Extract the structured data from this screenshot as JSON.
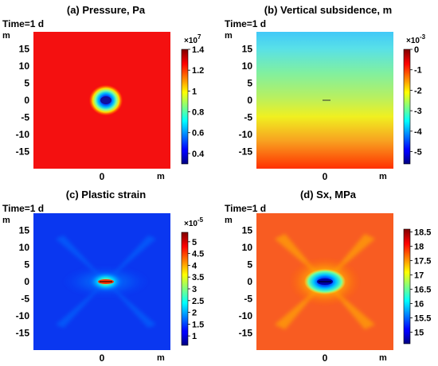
{
  "chart_data": [
    {
      "type": "heatmap",
      "title": "(a) Pressure, Pa",
      "time_label": "Time=1 d",
      "xlabel": "m",
      "ylabel": "m",
      "xlim": [
        -20,
        20
      ],
      "ylim": [
        -20,
        20
      ],
      "xticks": [
        "0"
      ],
      "yticks": [
        "15",
        "10",
        "5",
        "0",
        "-5",
        "-10",
        "-15"
      ],
      "colorbar": {
        "multiplier": "×10",
        "exponent": "7",
        "range": [
          0.3,
          1.4
        ],
        "ticks": [
          "1.4",
          "1.2",
          "1",
          "0.8",
          "0.6",
          "0.4"
        ]
      }
    },
    {
      "type": "heatmap",
      "title": "(b) Vertical subsidence, m",
      "time_label": "Time=1 d",
      "xlabel": "m",
      "ylabel": "m",
      "xlim": [
        -20,
        20
      ],
      "ylim": [
        -20,
        20
      ],
      "xticks": [
        "0"
      ],
      "yticks": [
        "15",
        "10",
        "5",
        "0",
        "-5",
        "-10",
        "-15"
      ],
      "colorbar": {
        "multiplier": "×10",
        "exponent": "-3",
        "range": [
          -5.6,
          0
        ],
        "ticks": [
          "0",
          "-1",
          "-2",
          "-3",
          "-4",
          "-5"
        ]
      }
    },
    {
      "type": "heatmap",
      "title": "(c) Plastic strain",
      "time_label": "Time=1 d",
      "xlabel": "m",
      "ylabel": "m",
      "xlim": [
        -20,
        20
      ],
      "ylim": [
        -20,
        20
      ],
      "xticks": [
        "0"
      ],
      "yticks": [
        "15",
        "10",
        "5",
        "0",
        "-5",
        "-10",
        "-15"
      ],
      "colorbar": {
        "multiplier": "×10",
        "exponent": "-5",
        "range": [
          0.6,
          5.4
        ],
        "ticks": [
          "5",
          "4.5",
          "4",
          "3.5",
          "3",
          "2.5",
          "2",
          "1.5",
          "1"
        ]
      }
    },
    {
      "type": "heatmap",
      "title": "(d) Sx, MPa",
      "time_label": "Time=1 d",
      "xlabel": "m",
      "ylabel": "m",
      "xlim": [
        -20,
        20
      ],
      "ylim": [
        -20,
        20
      ],
      "xticks": [
        "0"
      ],
      "yticks": [
        "15",
        "10",
        "5",
        "0",
        "-5",
        "-10",
        "-15"
      ],
      "colorbar": {
        "multiplier": "",
        "exponent": "",
        "range": [
          14.6,
          18.6
        ],
        "ticks": [
          "18.5",
          "18",
          "17.5",
          "17",
          "16.5",
          "16",
          "15.5",
          "15"
        ]
      }
    }
  ]
}
